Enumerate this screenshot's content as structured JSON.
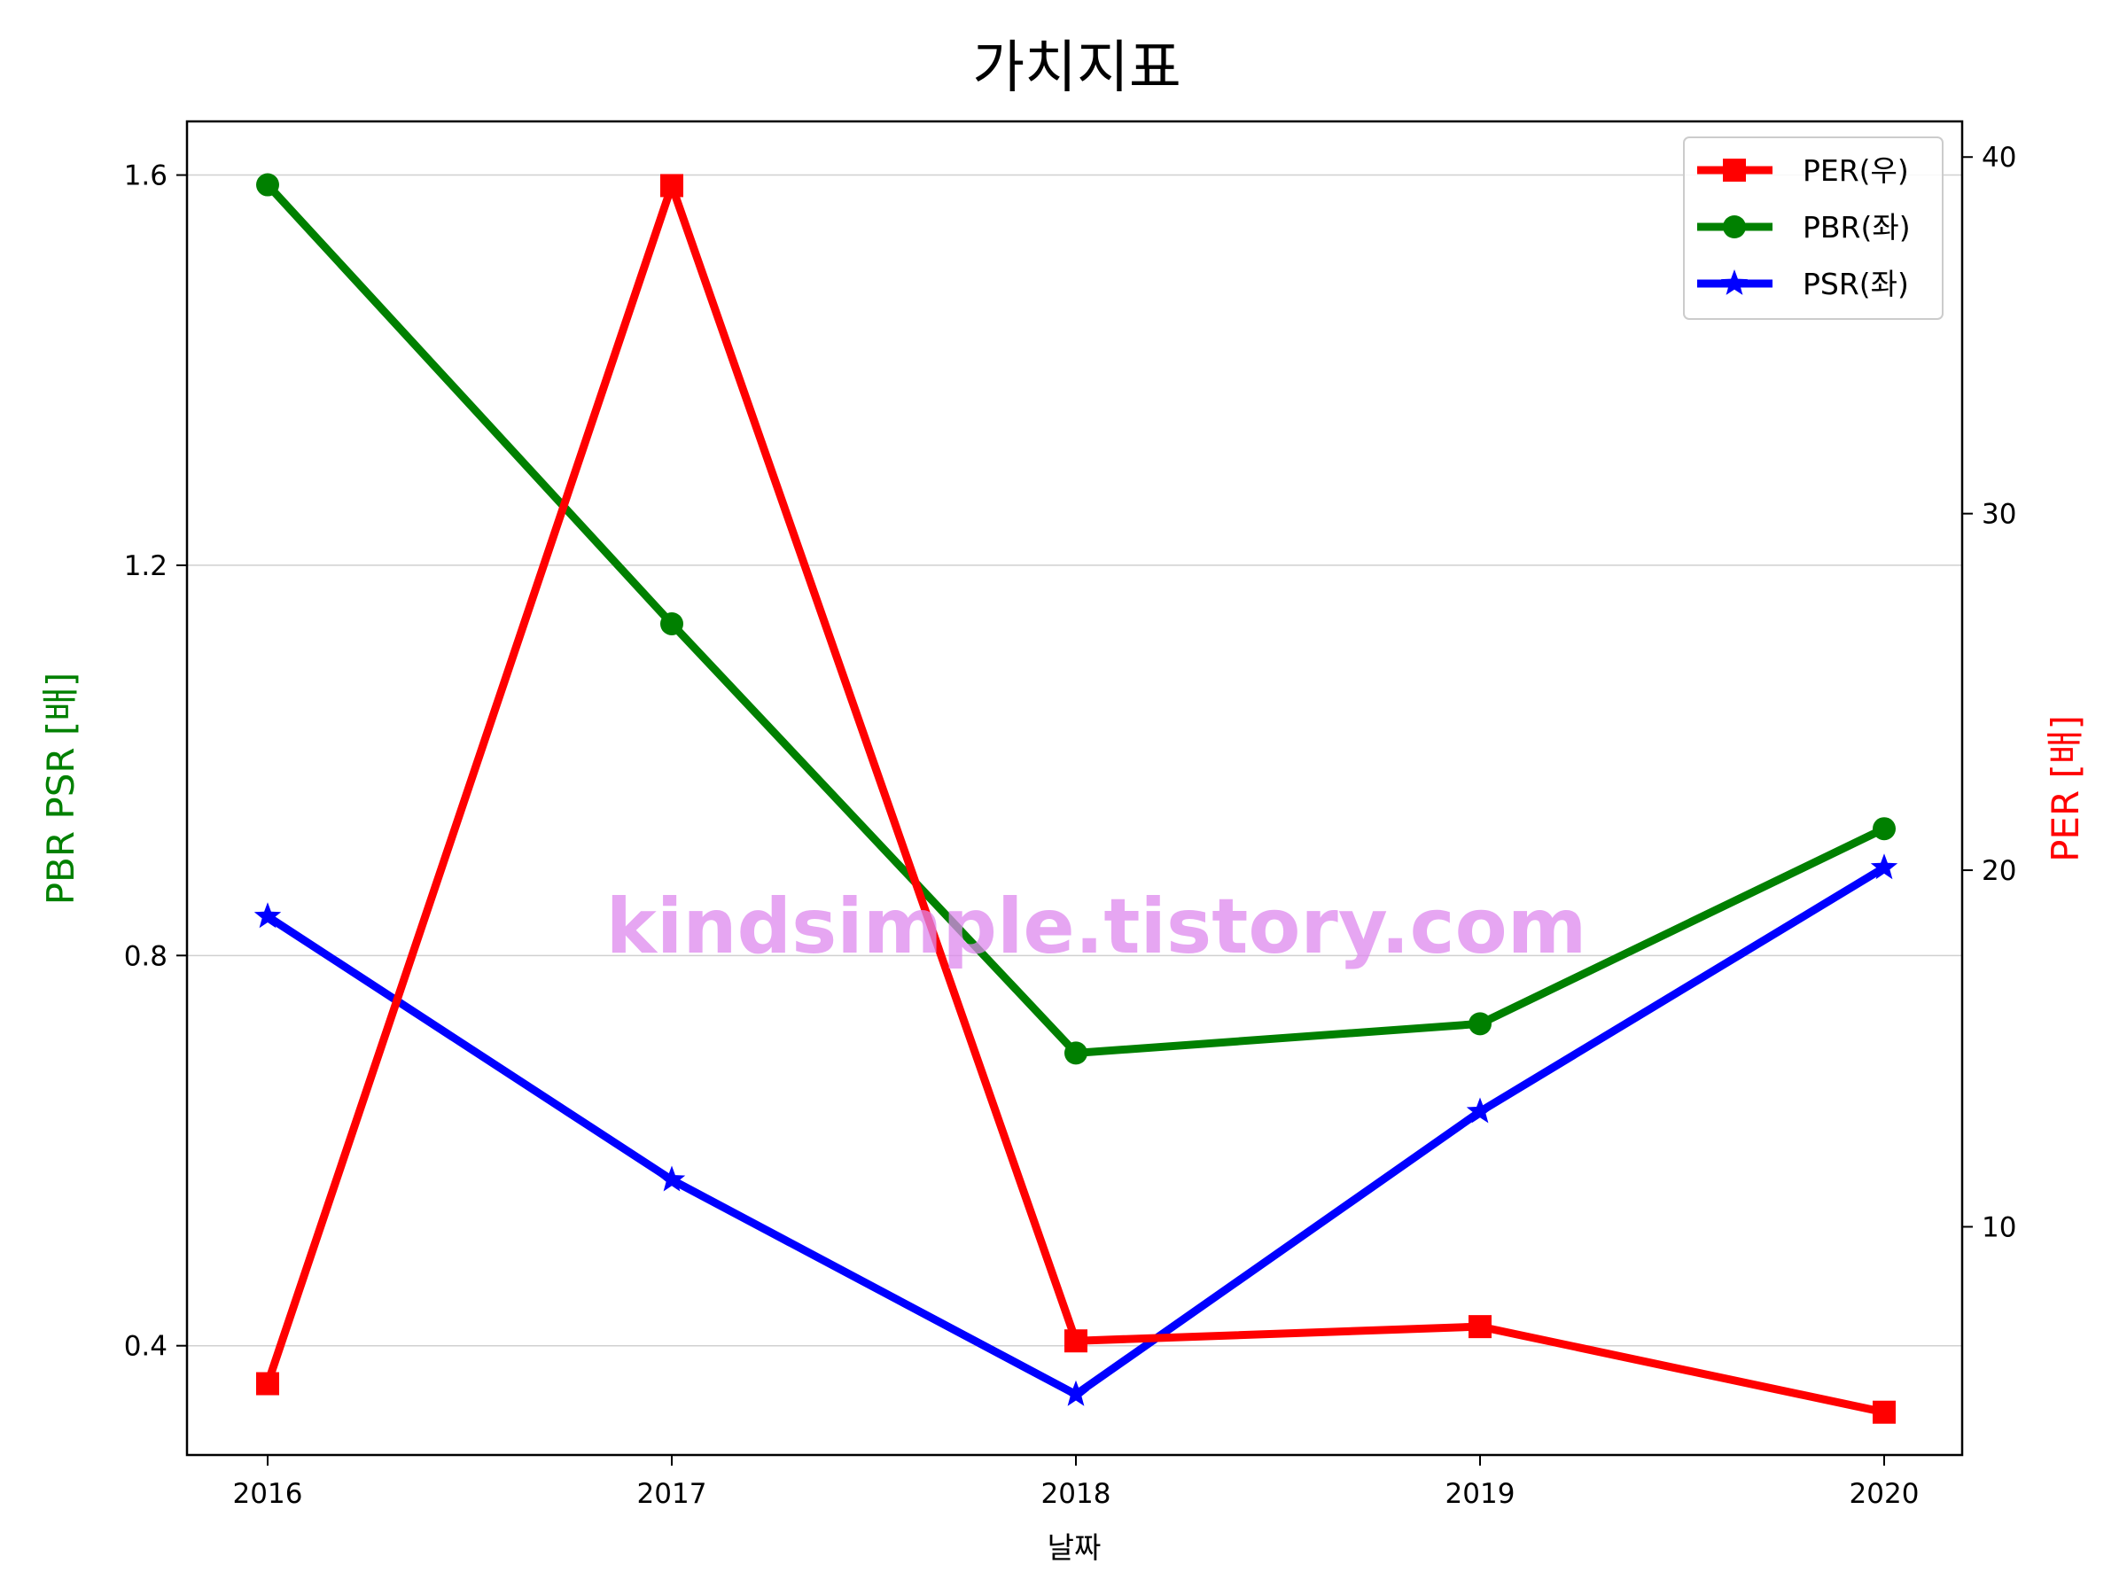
{
  "chart_data": {
    "type": "line",
    "title": "가치지표",
    "xlabel": "날짜",
    "ylabel_left": "PBR PSR [배]",
    "ylabel_right": "PER [배]",
    "categories": [
      "2016",
      "2017",
      "2018",
      "2019",
      "2020"
    ],
    "y_left": {
      "ylim": [
        0.288,
        1.655
      ],
      "ticks": [
        0.4,
        0.8,
        1.2,
        1.6
      ],
      "tick_labels": [
        "0.4",
        "0.8",
        "1.2",
        "1.6"
      ]
    },
    "y_right": {
      "ylim": [
        3.6,
        41.0
      ],
      "ticks": [
        10,
        20,
        30,
        40
      ],
      "tick_labels": [
        "10",
        "20",
        "30",
        "40"
      ]
    },
    "grid": "horizontal",
    "legend_position": "top-right",
    "series": [
      {
        "name": "PER(우)",
        "axis": "right",
        "color": "#ff0000",
        "marker": "square",
        "values": [
          5.6,
          39.2,
          6.8,
          7.2,
          4.8
        ]
      },
      {
        "name": "PBR(좌)",
        "axis": "left",
        "color": "#008000",
        "marker": "circle",
        "values": [
          1.59,
          1.14,
          0.7,
          0.73,
          0.93
        ]
      },
      {
        "name": "PSR(좌)",
        "axis": "left",
        "color": "#0000ff",
        "marker": "star",
        "values": [
          0.84,
          0.57,
          0.35,
          0.64,
          0.89
        ]
      }
    ],
    "watermark": "kindsimple.tistory.com"
  }
}
